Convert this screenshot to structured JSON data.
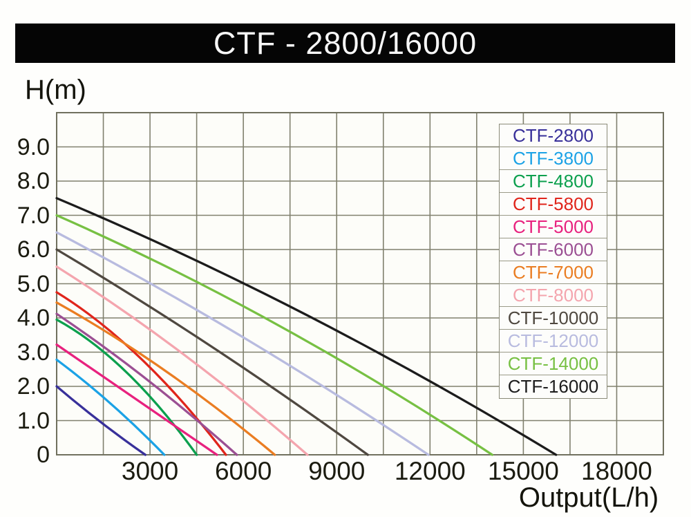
{
  "title": "CTF - 2800/16000",
  "axes": {
    "y_label": "H(m)",
    "x_label": "Output(L/h)",
    "y_ticks": [
      {
        "label": "9.0",
        "value": 9
      },
      {
        "label": "8.0",
        "value": 8
      },
      {
        "label": "7.0",
        "value": 7
      },
      {
        "label": "6.0",
        "value": 6
      },
      {
        "label": "5.0",
        "value": 5
      },
      {
        "label": "4.0",
        "value": 4
      },
      {
        "label": "3.0",
        "value": 3
      },
      {
        "label": "2.0",
        "value": 2
      },
      {
        "label": "1.0",
        "value": 1
      },
      {
        "label": "0",
        "value": 0
      }
    ],
    "x_ticks": [
      {
        "label": "3000",
        "value": 3000
      },
      {
        "label": "6000",
        "value": 6000
      },
      {
        "label": "9000",
        "value": 9000
      },
      {
        "label": "12000",
        "value": 12000
      },
      {
        "label": "15000",
        "value": 15000
      },
      {
        "label": "18000",
        "value": 18000
      }
    ]
  },
  "legend": {
    "items": [
      {
        "label": "CTF-2800",
        "color": "#38309a"
      },
      {
        "label": "CTF-3800",
        "color": "#1ba2e6"
      },
      {
        "label": "CTF-4800",
        "color": "#0ca04e"
      },
      {
        "label": "CTF-5800",
        "color": "#e0251b"
      },
      {
        "label": "CTF-5000",
        "color": "#e8217e"
      },
      {
        "label": "CTF-6000",
        "color": "#9b4f93"
      },
      {
        "label": "CTF-7000",
        "color": "#ea7d22"
      },
      {
        "label": "CTF-8000",
        "color": "#f4a5ae"
      },
      {
        "label": "CTF-10000",
        "color": "#4f4840"
      },
      {
        "label": "CTF-12000",
        "color": "#b8bbdf"
      },
      {
        "label": "CTF-14000",
        "color": "#77c043"
      },
      {
        "label": "CTF-16000",
        "color": "#1c1c1c"
      }
    ]
  },
  "chart_data": {
    "type": "line",
    "title": "CTF - 2800/16000 pump performance curves",
    "xlabel": "Output(L/h)",
    "ylabel": "H(m)",
    "xlim": [
      0,
      19500
    ],
    "ylim": [
      0,
      10
    ],
    "grid": true,
    "x_grid_step": 1500,
    "y_grid_step": 1,
    "legend_position": "upper right",
    "series": [
      {
        "name": "CTF-2800",
        "color": "#38309a",
        "shutoff_head_m": 2.0,
        "max_flow_lh": 2850,
        "control_head_m": 0.9,
        "points": [
          [
            0,
            2.0
          ],
          [
            710,
            1.46
          ],
          [
            1425,
            0.95
          ],
          [
            2140,
            0.46
          ],
          [
            2850,
            0
          ]
        ]
      },
      {
        "name": "CTF-3800",
        "color": "#1ba2e6",
        "shutoff_head_m": 2.78,
        "max_flow_lh": 3460,
        "control_head_m": 1.61,
        "points": [
          [
            0,
            2.78
          ],
          [
            865,
            2.17
          ],
          [
            1730,
            1.5
          ],
          [
            2595,
            0.78
          ],
          [
            3460,
            0
          ]
        ]
      },
      {
        "name": "CTF-4800",
        "color": "#0ca04e",
        "shutoff_head_m": 3.95,
        "max_flow_lh": 4500,
        "control_head_m": 2.84,
        "points": [
          [
            0,
            3.95
          ],
          [
            1125,
            3.29
          ],
          [
            2250,
            2.41
          ],
          [
            3375,
            1.31
          ],
          [
            4500,
            0
          ]
        ]
      },
      {
        "name": "CTF-5800",
        "color": "#e0251b",
        "shutoff_head_m": 4.75,
        "max_flow_lh": 5440,
        "control_head_m": 3.23,
        "points": [
          [
            0,
            4.75
          ],
          [
            1360,
            3.88
          ],
          [
            2720,
            2.8
          ],
          [
            4080,
            1.51
          ],
          [
            5440,
            0
          ]
        ]
      },
      {
        "name": "CTF-5000",
        "color": "#e8217e",
        "shutoff_head_m": 3.22,
        "max_flow_lh": 5150,
        "control_head_m": 1.61,
        "points": [
          [
            0,
            3.22
          ],
          [
            1290,
            2.42
          ],
          [
            2575,
            1.61
          ],
          [
            3860,
            0.81
          ],
          [
            5150,
            0
          ]
        ]
      },
      {
        "name": "CTF-6000",
        "color": "#9b4f93",
        "shutoff_head_m": 4.12,
        "max_flow_lh": 5790,
        "control_head_m": 2.35,
        "points": [
          [
            0,
            4.12
          ],
          [
            1450,
            3.2
          ],
          [
            2895,
            2.21
          ],
          [
            4340,
            1.14
          ],
          [
            5790,
            0
          ]
        ]
      },
      {
        "name": "CTF-7000",
        "color": "#ea7d22",
        "shutoff_head_m": 4.45,
        "max_flow_lh": 7010,
        "control_head_m": 2.67,
        "points": [
          [
            0,
            4.45
          ],
          [
            1750,
            3.5
          ],
          [
            3505,
            2.45
          ],
          [
            5260,
            1.28
          ],
          [
            7010,
            0
          ]
        ]
      },
      {
        "name": "CTF-8000",
        "color": "#f4a5ae",
        "shutoff_head_m": 5.5,
        "max_flow_lh": 8060,
        "control_head_m": 3.19,
        "points": [
          [
            0,
            5.5
          ],
          [
            2015,
            4.29
          ],
          [
            4030,
            2.97
          ],
          [
            6045,
            1.54
          ],
          [
            8060,
            0
          ]
        ]
      },
      {
        "name": "CTF-10000",
        "color": "#4f4840",
        "shutoff_head_m": 6.0,
        "max_flow_lh": 10000,
        "control_head_m": 3.3,
        "points": [
          [
            0,
            6.0
          ],
          [
            2500,
            4.61
          ],
          [
            5000,
            3.15
          ],
          [
            7500,
            1.61
          ],
          [
            10000,
            0
          ]
        ]
      },
      {
        "name": "CTF-12000",
        "color": "#b8bbdf",
        "shutoff_head_m": 6.5,
        "max_flow_lh": 11950,
        "control_head_m": 3.64,
        "points": [
          [
            0,
            6.5
          ],
          [
            2990,
            5.02
          ],
          [
            5975,
            3.45
          ],
          [
            8960,
            1.77
          ],
          [
            11950,
            0
          ]
        ]
      },
      {
        "name": "CTF-14000",
        "color": "#77c043",
        "shutoff_head_m": 7.0,
        "max_flow_lh": 14000,
        "control_head_m": 4.2,
        "points": [
          [
            0,
            7.0
          ],
          [
            3500,
            5.51
          ],
          [
            7000,
            3.85
          ],
          [
            10500,
            2.01
          ],
          [
            14000,
            0
          ]
        ]
      },
      {
        "name": "CTF-16000",
        "color": "#1c1c1c",
        "shutoff_head_m": 7.5,
        "max_flow_lh": 16050,
        "control_head_m": 4.43,
        "points": [
          [
            0,
            7.5
          ],
          [
            4010,
            5.88
          ],
          [
            8025,
            4.09
          ],
          [
            12040,
            2.13
          ],
          [
            16050,
            0
          ]
        ]
      }
    ]
  },
  "style": {
    "grid_color": "#80806e",
    "border_color": "#70705e",
    "plot_bg": "#fdfdf9",
    "text_color": "#1b1b10"
  }
}
